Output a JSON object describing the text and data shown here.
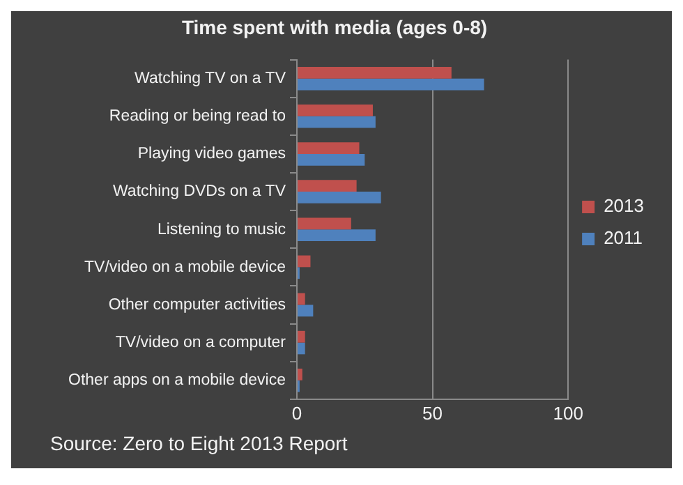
{
  "chart_data": {
    "type": "bar",
    "orientation": "horizontal",
    "title": "Time spent with media (ages 0-8)",
    "categories": [
      "Watching TV on a TV",
      "Reading or being read to",
      "Playing video games",
      "Watching DVDs on a TV",
      "Listening to music",
      "TV/video on a mobile device",
      "Other computer activities",
      "TV/video on a computer",
      "Other apps on a mobile device"
    ],
    "series": [
      {
        "name": "2013",
        "color": "#c0504d",
        "values": [
          57,
          28,
          23,
          22,
          20,
          5,
          3,
          3,
          2
        ]
      },
      {
        "name": "2011",
        "color": "#4f81bd",
        "values": [
          69,
          29,
          25,
          31,
          29,
          1,
          6,
          3,
          1
        ]
      }
    ],
    "xlim": [
      0,
      100
    ],
    "xticks": [
      0,
      50,
      100
    ],
    "grid": "x",
    "legend": "right",
    "annotations": [
      "Source: Zero to Eight 2013 Report"
    ]
  }
}
